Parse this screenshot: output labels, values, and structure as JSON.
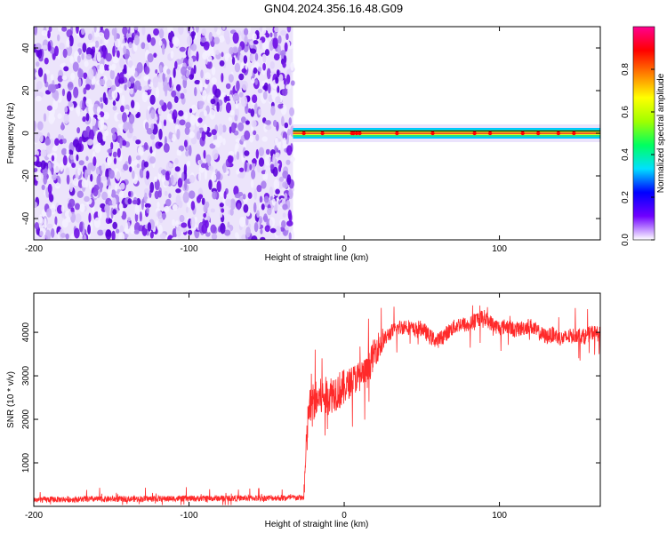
{
  "title": "GN04.2024.356.16.48.G09",
  "colors": {
    "snr_line": "#ff2a2a",
    "spectrogram_noise": "#7a10e8",
    "track_center": "#ff0000",
    "track_edge": "#00d0ff"
  },
  "chart_data": [
    {
      "type": "heatmap",
      "xlabel": "Height of straight line (km)",
      "ylabel": "Frequency (Hz)",
      "xlim": [
        -200,
        165
      ],
      "ylim": [
        -50,
        50
      ],
      "xticks": [
        -200,
        -100,
        0,
        100
      ],
      "xtick_labels": [
        "-200",
        "-100",
        "0",
        "100"
      ],
      "yticks": [
        -40,
        -20,
        0,
        20,
        40
      ],
      "ytick_labels": [
        "-40",
        "-20",
        "0",
        "20",
        "40"
      ],
      "noise_region_x": [
        -200,
        -33
      ],
      "signal_track": {
        "x_start": -33,
        "x_end": 165,
        "frequency_hz": 0,
        "peak_points_x": [
          -26,
          -14,
          5,
          6,
          8,
          10,
          34,
          57,
          84,
          94,
          115,
          125,
          138,
          148
        ]
      },
      "colorbar": {
        "label": "Normalized spectral amplitude",
        "ticks": [
          0.0,
          0.2,
          0.4,
          0.6,
          0.8
        ],
        "tick_labels": [
          "0.0",
          "0.2",
          "0.4",
          "0.6",
          "0.8"
        ],
        "range": [
          0,
          1
        ],
        "colormap": [
          "#ffffff",
          "#7000ff",
          "#0000ff",
          "#00e0ff",
          "#00ff60",
          "#a0ff00",
          "#ffff00",
          "#ff8000",
          "#ff0000",
          "#ff0090"
        ]
      },
      "grid": false
    },
    {
      "type": "line",
      "xlabel": "Height of straight line (km)",
      "ylabel": "SNR (10 * v/v)",
      "xlim": [
        -200,
        165
      ],
      "ylim": [
        0,
        4900
      ],
      "xticks": [
        -200,
        -100,
        0,
        100
      ],
      "xtick_labels": [
        "-200",
        "-100",
        "0",
        "100"
      ],
      "yticks": [
        1000,
        2000,
        3000,
        4000
      ],
      "ytick_labels": [
        "1000",
        "2000",
        "3000",
        "4000"
      ],
      "grid": false,
      "series": [
        {
          "x": [
            -200,
            -180,
            -160,
            -140,
            -120,
            -100,
            -80,
            -60,
            -40,
            -26,
            -25,
            -23,
            -20,
            -15,
            -10,
            -5,
            0,
            5,
            10,
            15,
            20,
            25,
            30,
            35,
            40,
            45,
            50,
            55,
            60,
            65,
            70,
            75,
            80,
            85,
            90,
            95,
            100,
            105,
            110,
            115,
            120,
            125,
            130,
            135,
            140,
            145,
            150,
            155,
            160,
            165
          ],
          "values": [
            150,
            160,
            165,
            170,
            175,
            180,
            185,
            190,
            195,
            200,
            900,
            2200,
            2400,
            2500,
            2550,
            2650,
            2700,
            2900,
            3000,
            3100,
            3600,
            3800,
            4000,
            4100,
            4150,
            4050,
            4100,
            3900,
            3800,
            3950,
            4100,
            4200,
            4150,
            4300,
            4350,
            4200,
            4100,
            4150,
            4050,
            4100,
            4150,
            4000,
            3900,
            3950,
            3850,
            3900,
            3950,
            3900,
            4000,
            3950
          ]
        }
      ]
    }
  ]
}
